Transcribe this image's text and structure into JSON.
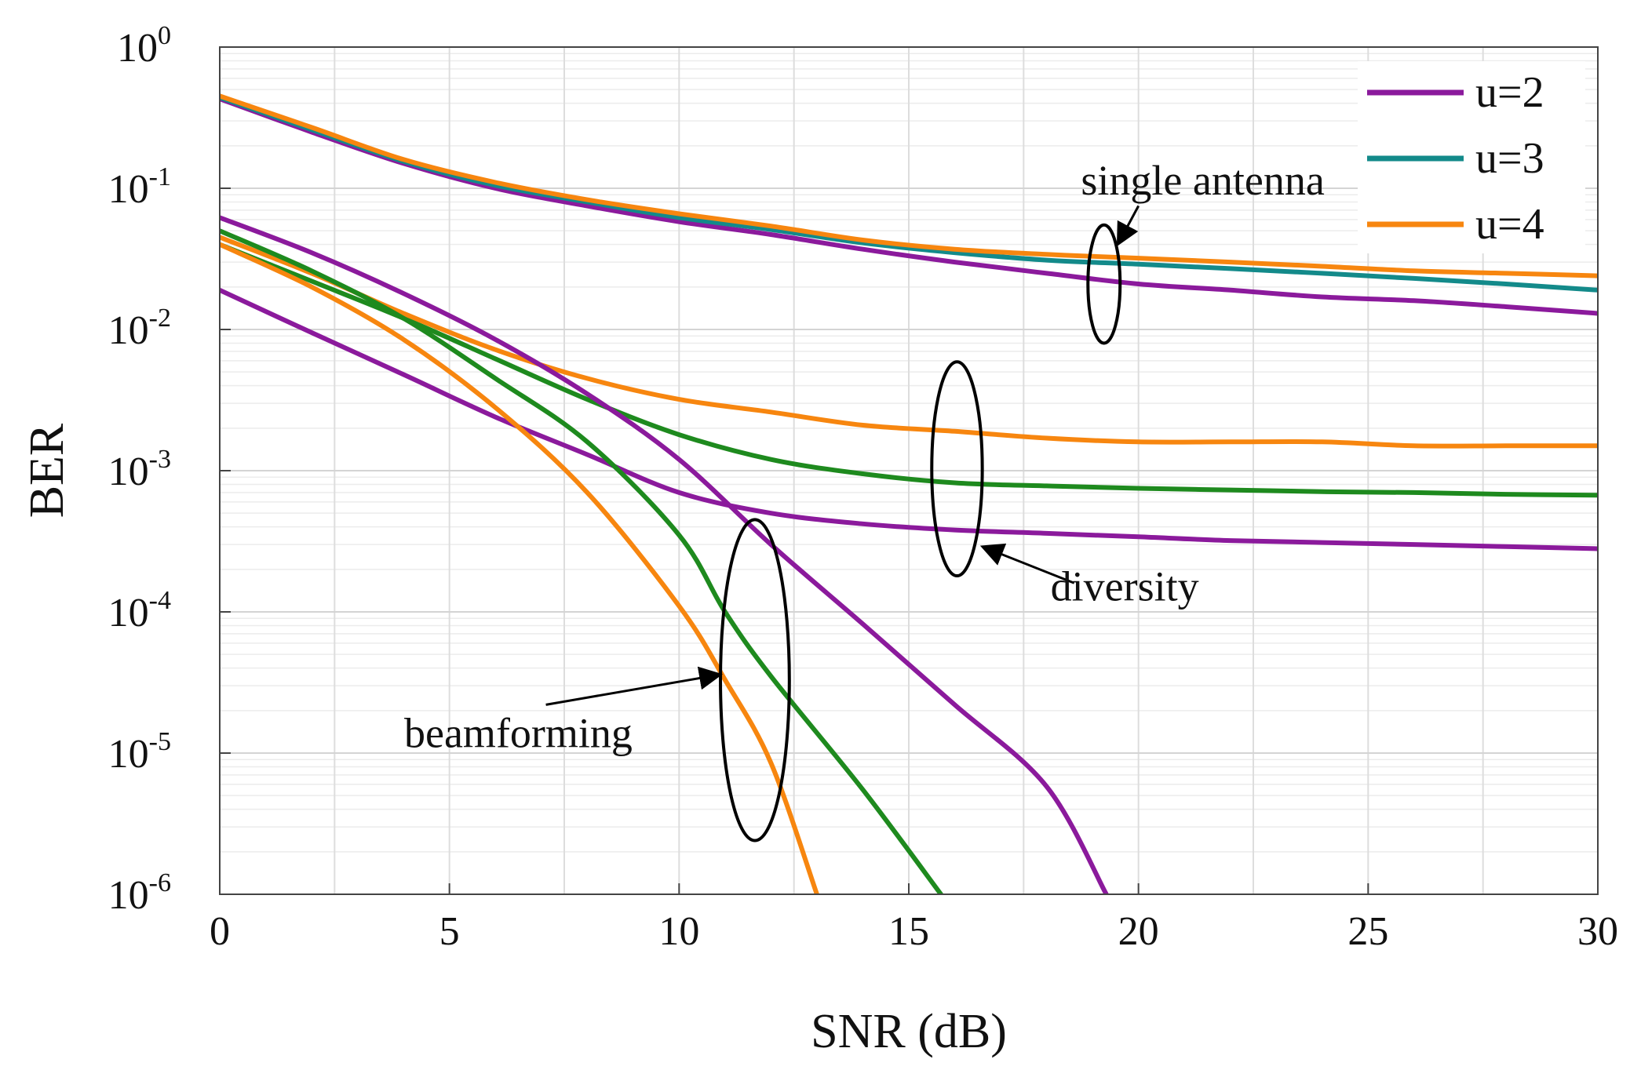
{
  "chart_data": {
    "type": "line",
    "xlabel": "SNR (dB)",
    "ylabel": "BER",
    "xlim": [
      0,
      30
    ],
    "ylim": [
      1e-06,
      1
    ],
    "yscale": "log",
    "grid": true,
    "legend_position": "top-right",
    "x_ticks": [
      "0",
      "5",
      "10",
      "15",
      "20",
      "25",
      "30"
    ],
    "y_ticks": [
      {
        "base": "10",
        "exp": "0",
        "value": 1
      },
      {
        "base": "10",
        "exp": "-1",
        "value": 0.1
      },
      {
        "base": "10",
        "exp": "-2",
        "value": 0.01
      },
      {
        "base": "10",
        "exp": "-3",
        "value": 0.001
      },
      {
        "base": "10",
        "exp": "-4",
        "value": 0.0001
      },
      {
        "base": "10",
        "exp": "-5",
        "value": 1e-05
      },
      {
        "base": "10",
        "exp": "-6",
        "value": 1e-06
      }
    ],
    "legend": [
      {
        "label": "u=2",
        "color": "#8b1a9c"
      },
      {
        "label": "u=3",
        "color": "#138a8a"
      },
      {
        "label": "u=4",
        "color": "#f7860f"
      }
    ],
    "series": [
      {
        "group": "single antenna",
        "legend": "u=2",
        "color": "#8b1a9c",
        "points": [
          [
            0,
            0.43
          ],
          [
            2,
            0.25
          ],
          [
            4,
            0.15
          ],
          [
            6,
            0.1
          ],
          [
            8,
            0.075
          ],
          [
            10,
            0.058
          ],
          [
            12,
            0.047
          ],
          [
            14,
            0.037
          ],
          [
            16,
            0.03
          ],
          [
            18,
            0.025
          ],
          [
            20,
            0.021
          ],
          [
            22,
            0.019
          ],
          [
            24,
            0.017
          ],
          [
            26,
            0.016
          ],
          [
            28,
            0.0145
          ],
          [
            30,
            0.013
          ]
        ]
      },
      {
        "group": "single antenna",
        "legend": "u=3",
        "color": "#138a8a",
        "points": [
          [
            0,
            0.44
          ],
          [
            2,
            0.26
          ],
          [
            4,
            0.155
          ],
          [
            6,
            0.105
          ],
          [
            8,
            0.08
          ],
          [
            10,
            0.062
          ],
          [
            12,
            0.051
          ],
          [
            14,
            0.041
          ],
          [
            16,
            0.035
          ],
          [
            18,
            0.031
          ],
          [
            20,
            0.029
          ],
          [
            22,
            0.027
          ],
          [
            24,
            0.025
          ],
          [
            26,
            0.023
          ],
          [
            28,
            0.021
          ],
          [
            30,
            0.019
          ]
        ]
      },
      {
        "group": "single antenna",
        "legend": "u=4",
        "color": "#f7860f",
        "points": [
          [
            0,
            0.45
          ],
          [
            2,
            0.27
          ],
          [
            4,
            0.16
          ],
          [
            6,
            0.11
          ],
          [
            8,
            0.083
          ],
          [
            10,
            0.066
          ],
          [
            12,
            0.054
          ],
          [
            14,
            0.043
          ],
          [
            16,
            0.037
          ],
          [
            18,
            0.034
          ],
          [
            20,
            0.032
          ],
          [
            22,
            0.03
          ],
          [
            24,
            0.028
          ],
          [
            26,
            0.026
          ],
          [
            28,
            0.025
          ],
          [
            30,
            0.024
          ]
        ]
      },
      {
        "group": "diversity",
        "legend": "u=2",
        "color": "#8b1a9c",
        "points": [
          [
            0,
            0.019
          ],
          [
            2,
            0.0095
          ],
          [
            4,
            0.0048
          ],
          [
            6,
            0.0024
          ],
          [
            8,
            0.0013
          ],
          [
            10,
            0.0007
          ],
          [
            12,
            0.0005
          ],
          [
            14,
            0.00042
          ],
          [
            16,
            0.00038
          ],
          [
            18,
            0.00036
          ],
          [
            20,
            0.00034
          ],
          [
            22,
            0.00032
          ],
          [
            24,
            0.00031
          ],
          [
            26,
            0.0003
          ],
          [
            28,
            0.00029
          ],
          [
            30,
            0.00028
          ]
        ]
      },
      {
        "group": "diversity",
        "legend": "u=3",
        "color": "#1e8a1e",
        "points": [
          [
            0,
            0.04
          ],
          [
            2,
            0.022
          ],
          [
            4,
            0.012
          ],
          [
            6,
            0.0062
          ],
          [
            8,
            0.0032
          ],
          [
            10,
            0.0018
          ],
          [
            12,
            0.0012
          ],
          [
            14,
            0.00095
          ],
          [
            16,
            0.00082
          ],
          [
            18,
            0.00078
          ],
          [
            20,
            0.00075
          ],
          [
            22,
            0.00073
          ],
          [
            24,
            0.00071
          ],
          [
            26,
            0.0007
          ],
          [
            28,
            0.00068
          ],
          [
            30,
            0.00067
          ]
        ]
      },
      {
        "group": "diversity",
        "legend": "u=4",
        "color": "#f7860f",
        "points": [
          [
            0,
            0.045
          ],
          [
            2,
            0.025
          ],
          [
            4,
            0.013
          ],
          [
            6,
            0.0072
          ],
          [
            8,
            0.0045
          ],
          [
            10,
            0.0032
          ],
          [
            12,
            0.0026
          ],
          [
            14,
            0.0021
          ],
          [
            16,
            0.0019
          ],
          [
            18,
            0.0017
          ],
          [
            20,
            0.0016
          ],
          [
            22,
            0.0016
          ],
          [
            24,
            0.0016
          ],
          [
            26,
            0.0015
          ],
          [
            28,
            0.0015
          ],
          [
            30,
            0.0015
          ]
        ]
      },
      {
        "group": "beamforming",
        "legend": "u=2",
        "color": "#8b1a9c",
        "points": [
          [
            0,
            0.062
          ],
          [
            2,
            0.035
          ],
          [
            4,
            0.018
          ],
          [
            6,
            0.0085
          ],
          [
            8,
            0.0035
          ],
          [
            10,
            0.0012
          ],
          [
            12,
            0.0003
          ],
          [
            14,
            8.2e-05
          ],
          [
            16,
            2.2e-05
          ],
          [
            18,
            5.8e-06
          ],
          [
            19.3,
            1e-06
          ]
        ]
      },
      {
        "group": "beamforming",
        "legend": "u=3",
        "color": "#1e8a1e",
        "points": [
          [
            0,
            0.05
          ],
          [
            2,
            0.026
          ],
          [
            4,
            0.012
          ],
          [
            6,
            0.0045
          ],
          [
            8,
            0.0016
          ],
          [
            10,
            0.00035
          ],
          [
            11,
            0.0001
          ],
          [
            12,
            3.5e-05
          ],
          [
            14,
            5.5e-06
          ],
          [
            15.7,
            1e-06
          ]
        ]
      },
      {
        "group": "beamforming",
        "legend": "u=4",
        "color": "#f7860f",
        "points": [
          [
            0,
            0.04
          ],
          [
            2,
            0.02
          ],
          [
            4,
            0.0085
          ],
          [
            6,
            0.0028
          ],
          [
            8,
            0.0007
          ],
          [
            10,
            0.00011
          ],
          [
            11,
            3.3e-05
          ],
          [
            12,
            8.5e-06
          ],
          [
            13,
            1e-06
          ]
        ]
      }
    ],
    "annotations": [
      {
        "text": "single antenna",
        "ellipse_center": [
          19.2,
          0.026
        ],
        "ellipse_span_x": [
          18.9,
          19.6
        ],
        "ellipse_span_y": [
          0.008,
          0.055
        ],
        "label_at": [
          21.4,
          0.09
        ]
      },
      {
        "text": "diversity",
        "ellipse_center": [
          16.1,
          0.00095
        ],
        "ellipse_span_x": [
          15.5,
          16.6
        ],
        "ellipse_span_y": [
          0.00018,
          0.0059
        ],
        "label_at": [
          19.7,
          0.00012
        ]
      },
      {
        "text": "beamforming",
        "ellipse_center": [
          11.6,
          1.7e-05
        ],
        "ellipse_span_x": [
          10.9,
          12.4
        ],
        "ellipse_span_y": [
          2.4e-06,
          0.00045
        ],
        "label_at": [
          6.5,
          1.1e-05
        ]
      }
    ]
  }
}
